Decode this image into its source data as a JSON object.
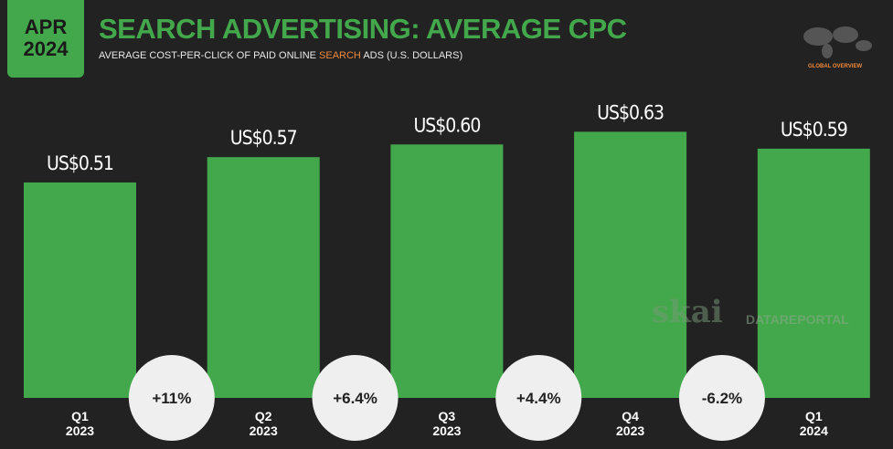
{
  "header": {
    "badge_month": "APR",
    "badge_year": "2024",
    "title": "SEARCH ADVERTISING: AVERAGE CPC",
    "subtitle_parts": [
      "AVERAGE COST-PER-CLICK OF PAID ONLINE ",
      "SEARCH",
      " ADS (U.S. DOLLARS)"
    ],
    "corner_label": "GLOBAL OVERVIEW"
  },
  "watermarks": [
    "skai",
    "DATAREPORTAL"
  ],
  "chart_data": {
    "type": "bar",
    "categories": [
      "Q1 2023",
      "Q2 2023",
      "Q3 2023",
      "Q4 2023",
      "Q1 2024"
    ],
    "values": [
      0.51,
      0.57,
      0.6,
      0.63,
      0.59
    ],
    "value_labels": [
      "US$0.51",
      "US$0.57",
      "US$0.60",
      "US$0.63",
      "US$0.59"
    ],
    "changes": [
      {
        "value": 11,
        "label": "+11%"
      },
      {
        "value": 6.4,
        "label": "+6.4%"
      },
      {
        "value": 4.4,
        "label": "+4.4%"
      },
      {
        "value": -6.2,
        "label": "-6.2%"
      }
    ],
    "color": "#43a84b",
    "ylim": [
      0,
      0.7
    ]
  }
}
